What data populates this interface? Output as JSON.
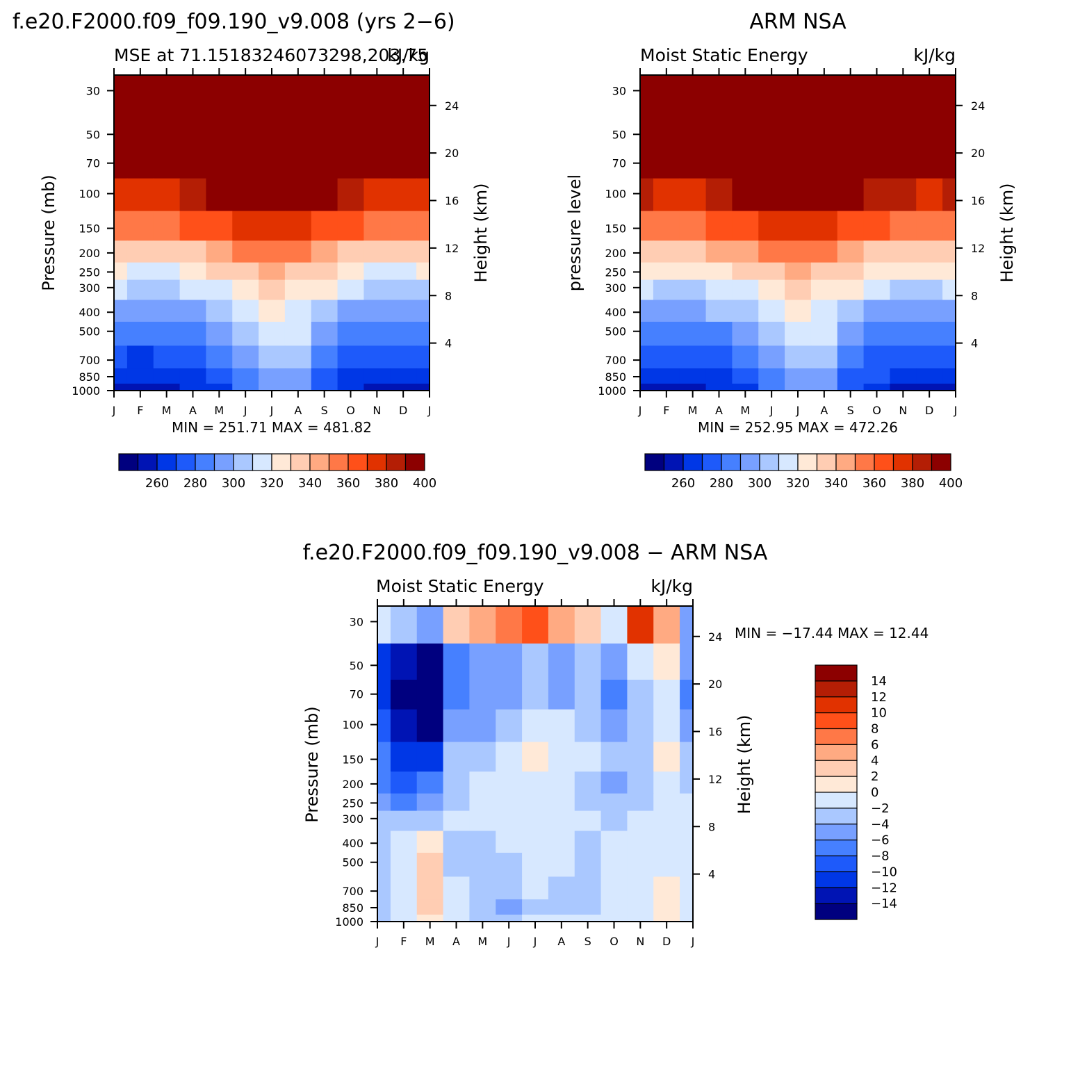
{
  "page": {
    "top_left_title": "f.e20.F2000.f09_f09.190_v9.008 (yrs 2−6)",
    "top_right_title": "ARM NSA",
    "bottom_title": "f.e20.F2000.f09_f09.190_v9.008 − ARM NSA"
  },
  "colors": {
    "mse_levels": [
      "#00007f",
      "#0014b4",
      "#0037e6",
      "#1e5afa",
      "#4680ff",
      "#78a0ff",
      "#aac8ff",
      "#d7e8ff",
      "#ffe9d7",
      "#ffcdb3",
      "#ffaa82",
      "#ff7847",
      "#ff5019",
      "#e13200",
      "#b41e05",
      "#8c0000"
    ],
    "diff_levels": [
      "#00007f",
      "#0014b4",
      "#0037e6",
      "#1e5afa",
      "#4680ff",
      "#78a0ff",
      "#aac8ff",
      "#d7e8ff",
      "#ffe9d7",
      "#ffcdb3",
      "#ffaa82",
      "#ff7847",
      "#ff5019",
      "#e13200",
      "#b41e05",
      "#8c0000"
    ]
  },
  "chart_data": [
    {
      "type": "heatmap",
      "title": "f.e20.F2000.f09_f09.190_v9.008 (yrs 2−6)",
      "subtitle_left": "MSE at 71.15183246073298,203.75",
      "subtitle_right": "kJ/kg",
      "xlabel": "",
      "ylabel": "Pressure (mb)",
      "ylabel_right": "Height (km)",
      "x_ticks": [
        "J",
        "F",
        "M",
        "A",
        "M",
        "J",
        "J",
        "A",
        "S",
        "O",
        "N",
        "D",
        "J"
      ],
      "y_ticks": [
        "30",
        "50",
        "70",
        "100",
        "150",
        "200",
        "250",
        "300",
        "400",
        "500",
        "700",
        "850",
        "1000"
      ],
      "y_ticks_right": [
        "24",
        "20",
        "16",
        "12",
        "8",
        "4"
      ],
      "stats": "MIN = 251.71 MAX = 481.82",
      "colorbar_labels": [
        "260",
        "280",
        "300",
        "320",
        "340",
        "360",
        "380",
        "400"
      ],
      "months": [
        "J",
        "F",
        "M",
        "A",
        "M",
        "J",
        "J",
        "A",
        "S",
        "O",
        "N",
        "D",
        "J"
      ],
      "pressure_levels": [
        30,
        50,
        70,
        100,
        150,
        200,
        250,
        300,
        400,
        500,
        700,
        850,
        1000
      ],
      "values": [
        [
          482,
          482,
          482,
          482,
          482,
          482,
          482,
          482,
          482,
          482,
          482,
          482,
          482
        ],
        [
          410,
          405,
          405,
          415,
          420,
          425,
          428,
          426,
          420,
          413,
          407,
          406,
          410
        ],
        [
          395,
          391,
          390,
          400,
          405,
          409,
          412,
          410,
          404,
          398,
          392,
          391,
          394
        ],
        [
          378,
          374,
          374,
          385,
          390,
          396,
          399,
          397,
          390,
          383,
          376,
          375,
          377
        ],
        [
          356,
          351,
          351,
          362,
          368,
          374,
          378,
          375,
          368,
          361,
          353,
          352,
          355
        ],
        [
          334,
          330,
          330,
          339,
          344,
          350,
          354,
          351,
          344,
          338,
          331,
          330,
          333
        ],
        [
          322,
          319,
          319,
          327,
          331,
          338,
          342,
          339,
          331,
          325,
          319,
          319,
          322
        ],
        [
          310,
          307,
          307,
          313,
          318,
          327,
          332,
          329,
          320,
          312,
          307,
          307,
          309
        ],
        [
          295,
          293,
          292,
          298,
          303,
          313,
          322,
          318,
          305,
          298,
          293,
          292,
          294
        ],
        [
          285,
          282,
          282,
          288,
          293,
          303,
          316,
          312,
          297,
          288,
          284,
          283,
          285
        ],
        [
          272,
          269,
          270,
          276,
          281,
          292,
          303,
          300,
          283,
          276,
          272,
          271,
          272
        ],
        [
          262,
          260,
          262,
          268,
          274,
          286,
          297,
          294,
          276,
          269,
          264,
          263,
          263
        ],
        [
          253,
          252,
          255,
          262,
          268,
          282,
          293,
          290,
          270,
          262,
          256,
          255,
          256
        ]
      ]
    },
    {
      "type": "heatmap",
      "title": "ARM NSA",
      "subtitle_left": "Moist Static Energy",
      "subtitle_right": "kJ/kg",
      "xlabel": "",
      "ylabel": "pressure level",
      "ylabel_right": "Height (km)",
      "x_ticks": [
        "J",
        "F",
        "M",
        "A",
        "M",
        "J",
        "J",
        "A",
        "S",
        "O",
        "N",
        "D",
        "J"
      ],
      "y_ticks": [
        "30",
        "50",
        "70",
        "100",
        "150",
        "200",
        "250",
        "300",
        "400",
        "500",
        "700",
        "850",
        "1000"
      ],
      "y_ticks_right": [
        "24",
        "20",
        "16",
        "12",
        "8",
        "4"
      ],
      "stats": "MIN = 252.95 MAX = 472.26",
      "colorbar_labels": [
        "260",
        "280",
        "300",
        "320",
        "340",
        "360",
        "380",
        "400"
      ],
      "months": [
        "J",
        "F",
        "M",
        "A",
        "M",
        "J",
        "J",
        "A",
        "S",
        "O",
        "N",
        "D",
        "J"
      ],
      "pressure_levels": [
        30,
        50,
        70,
        100,
        150,
        200,
        250,
        300,
        400,
        500,
        700,
        850,
        1000
      ],
      "values": [
        [
          472,
          472,
          472,
          472,
          472,
          472,
          472,
          472,
          472,
          472,
          472,
          472,
          472
        ],
        [
          414,
          412,
          412,
          420,
          424,
          428,
          430,
          428,
          423,
          416,
          412,
          411,
          413
        ],
        [
          398,
          396,
          396,
          403,
          407,
          411,
          413,
          411,
          406,
          400,
          396,
          395,
          397
        ],
        [
          381,
          378,
          378,
          387,
          392,
          397,
          400,
          398,
          392,
          385,
          380,
          379,
          380
        ],
        [
          358,
          354,
          354,
          364,
          369,
          375,
          378,
          376,
          369,
          362,
          356,
          355,
          357
        ],
        [
          336,
          332,
          332,
          340,
          345,
          351,
          354,
          352,
          345,
          339,
          333,
          332,
          335
        ],
        [
          323,
          320,
          320,
          327,
          332,
          338,
          342,
          339,
          332,
          326,
          320,
          320,
          323
        ],
        [
          311,
          308,
          308,
          314,
          319,
          327,
          331,
          328,
          320,
          313,
          308,
          308,
          310
        ],
        [
          297,
          294,
          294,
          300,
          305,
          314,
          322,
          319,
          306,
          299,
          294,
          294,
          296
        ],
        [
          286,
          283,
          283,
          289,
          294,
          304,
          315,
          312,
          297,
          289,
          284,
          284,
          286
        ],
        [
          273,
          270,
          271,
          277,
          282,
          293,
          303,
          300,
          284,
          277,
          272,
          271,
          273
        ],
        [
          263,
          261,
          263,
          268,
          275,
          287,
          297,
          294,
          277,
          270,
          264,
          263,
          264
        ],
        [
          254,
          253,
          256,
          262,
          269,
          283,
          293,
          290,
          271,
          263,
          257,
          256,
          257
        ]
      ]
    },
    {
      "type": "heatmap",
      "title": "f.e20.F2000.f09_f09.190_v9.008 − ARM NSA",
      "subtitle_left": "Moist Static Energy",
      "subtitle_right": "kJ/kg",
      "xlabel": "",
      "ylabel": "Pressure (mb)",
      "ylabel_right": "Height (km)",
      "x_ticks": [
        "J",
        "F",
        "M",
        "A",
        "M",
        "J",
        "J",
        "A",
        "S",
        "O",
        "N",
        "D",
        "J"
      ],
      "y_ticks": [
        "30",
        "50",
        "70",
        "100",
        "150",
        "200",
        "250",
        "300",
        "400",
        "500",
        "700",
        "850",
        "1000"
      ],
      "y_ticks_right": [
        "24",
        "20",
        "16",
        "12",
        "8",
        "4"
      ],
      "stats": "MIN = −17.44 MAX =  12.44",
      "colorbar_labels": [
        "14",
        "12",
        "10",
        "8",
        "6",
        "4",
        "2",
        "0",
        "−2",
        "−4",
        "−6",
        "−8",
        "−10",
        "−12",
        "−14"
      ],
      "months": [
        "J",
        "F",
        "M",
        "A",
        "M",
        "J",
        "J",
        "A",
        "S",
        "O",
        "N",
        "D",
        "J"
      ],
      "pressure_levels": [
        30,
        50,
        70,
        100,
        150,
        200,
        250,
        300,
        400,
        500,
        700,
        850,
        1000
      ],
      "values": [
        [
          -2,
          -4,
          -6,
          2,
          4,
          6,
          9,
          5,
          3,
          -1,
          10,
          4,
          -6
        ],
        [
          -12,
          -14,
          -16,
          -8,
          -6,
          -6,
          -4,
          -5,
          -4,
          -6,
          -2,
          0,
          -6
        ],
        [
          -12,
          -16,
          -17,
          -8,
          -6,
          -5,
          -4,
          -5,
          -3,
          -7,
          -4,
          -2,
          -7
        ],
        [
          -10,
          -14,
          -15,
          -6,
          -5,
          -3,
          -2,
          -2,
          -3,
          -5,
          -4,
          -2,
          -6
        ],
        [
          -8,
          -11,
          -12,
          -4,
          -3,
          -1,
          1,
          -1,
          -2,
          -4,
          -3,
          1,
          -4
        ],
        [
          -8,
          -9,
          -8,
          -3,
          -1,
          -1,
          -1,
          -1,
          -4,
          -5,
          -4,
          -1,
          -3
        ],
        [
          -6,
          -7,
          -5,
          -3,
          -1,
          -1,
          -1,
          -1,
          -3,
          -4,
          -3,
          -1,
          -2
        ],
        [
          -4,
          -4,
          -3,
          -2,
          -2,
          -1,
          -1,
          -1,
          -2,
          -3,
          -2,
          -1,
          -2
        ],
        [
          -3,
          -2,
          1,
          -3,
          -3,
          -2,
          -1,
          -2,
          -3,
          -2,
          -2,
          -1,
          -2
        ],
        [
          -3,
          -2,
          2,
          -3,
          -3,
          -3,
          -1,
          -2,
          -3,
          -2,
          -1,
          -1,
          -2
        ],
        [
          -3,
          -1,
          3,
          -2,
          -3,
          -4,
          -2,
          -3,
          -3,
          -2,
          -1,
          1,
          -2
        ],
        [
          -3,
          -1,
          2,
          -2,
          -4,
          -5,
          -3,
          -3,
          -3,
          -2,
          -1,
          1,
          -2
        ],
        [
          -3,
          -1,
          1,
          -2,
          -3,
          -4,
          -2,
          -2,
          -2,
          -2,
          -1,
          1,
          -2
        ]
      ]
    }
  ]
}
